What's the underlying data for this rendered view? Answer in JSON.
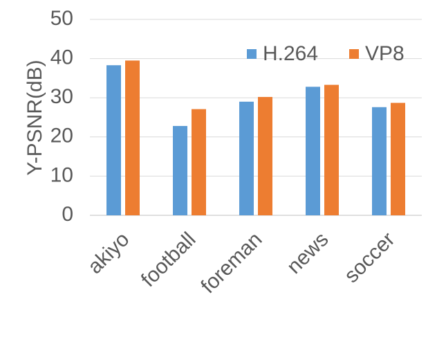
{
  "chart_data": {
    "type": "bar",
    "categories": [
      "akiyo",
      "football",
      "foreman",
      "news",
      "soccer"
    ],
    "series": [
      {
        "name": "H.264",
        "values": [
          38.3,
          22.8,
          29.0,
          32.8,
          27.6
        ],
        "color": "#5B9BD5"
      },
      {
        "name": "VP8",
        "values": [
          39.5,
          27.1,
          30.2,
          33.3,
          28.7
        ],
        "color": "#ED7D31"
      }
    ],
    "title": "",
    "xlabel": "",
    "ylabel": "Y-PSNR(dB)",
    "ylim": [
      0,
      50
    ],
    "yticks": [
      0,
      10,
      20,
      30,
      40,
      50
    ],
    "grid": true,
    "legend_position": "top-right"
  }
}
